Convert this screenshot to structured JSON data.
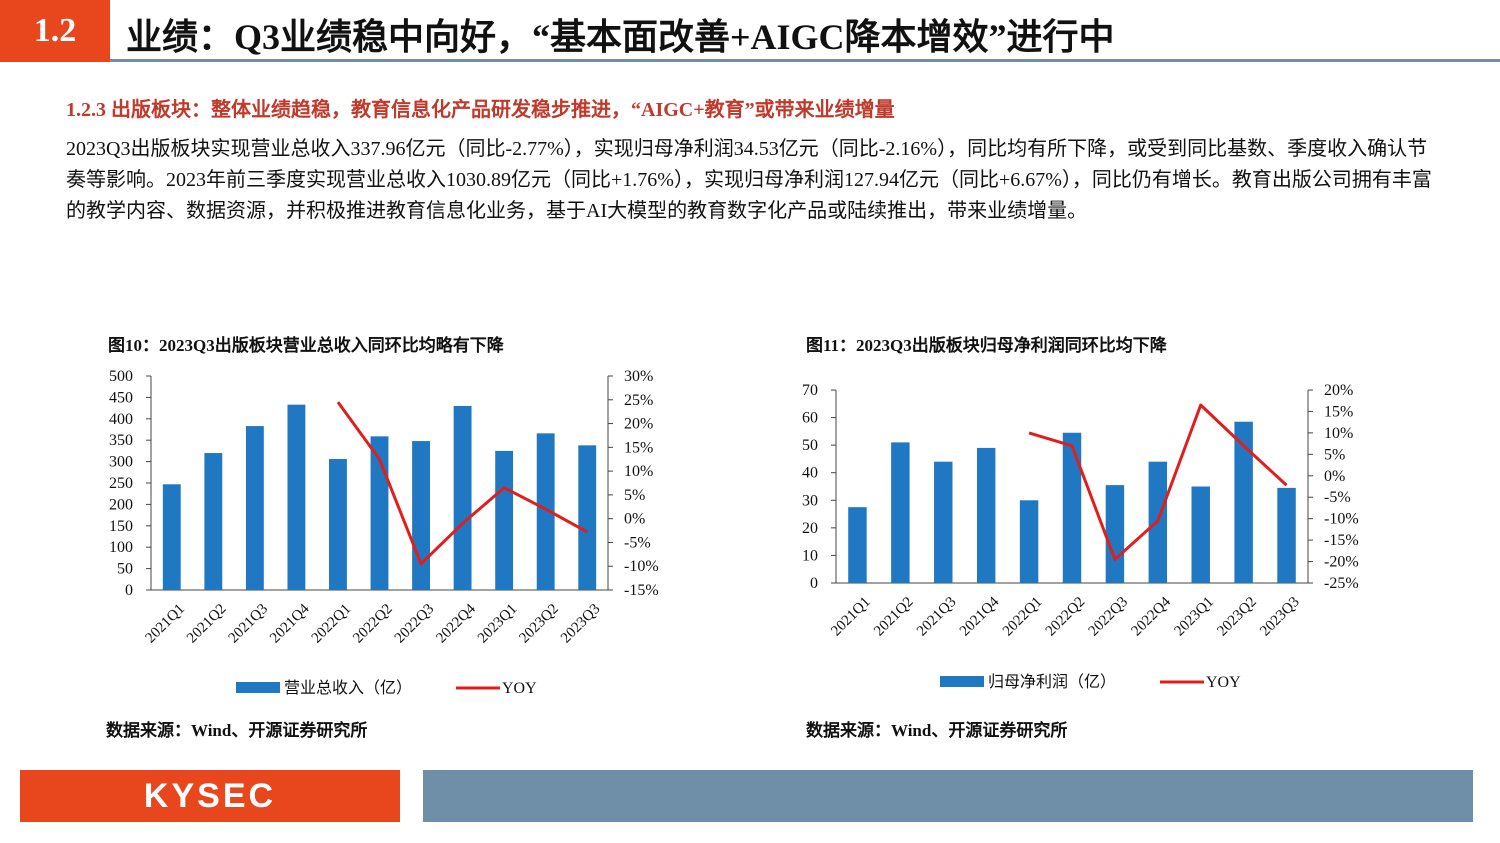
{
  "header": {
    "section_number": "1.2",
    "title": "业绩：Q3业绩稳中向好，“基本面改善+AIGC降本增效”进行中"
  },
  "subsection": {
    "title": "1.2.3 出版板块：整体业绩趋稳，教育信息化产品研发稳步推进，“AIGC+教育”或带来业绩增量"
  },
  "body": {
    "paragraph": "2023Q3出版板块实现营业总收入337.96亿元（同比-2.77%），实现归母净利润34.53亿元（同比-2.16%），同比均有所下降，或受到同比基数、季度收入确认节奏等影响。2023年前三季度实现营业总收入1030.89亿元（同比+1.76%），实现归母净利润127.94亿元（同比+6.67%），同比仍有增长。教育出版公司拥有丰富的教学内容、数据资源，并积极推进教育信息化业务，基于AI大模型的教育数字化产品或陆续推出，带来业绩增量。"
  },
  "figures": [
    {
      "title": "图10：2023Q3出版板块营业总收入同环比均略有下降",
      "source": "数据来源：Wind、开源证券研究所"
    },
    {
      "title": "图11：2023Q3出版板块归母净利润同环比均下降",
      "source": "数据来源：Wind、开源证券研究所"
    }
  ],
  "colors": {
    "accent": "#e8471e",
    "bar": "#1f78c1",
    "line": "#e01e1e",
    "rule": "#6f8ea8"
  },
  "chart_data": [
    {
      "type": "bar",
      "title": "图10：2023Q3出版板块营业总收入同环比均略有下降",
      "categories": [
        "2021Q1",
        "2021Q2",
        "2021Q3",
        "2021Q4",
        "2022Q1",
        "2022Q2",
        "2022Q3",
        "2022Q4",
        "2023Q1",
        "2023Q2",
        "2023Q3"
      ],
      "series": [
        {
          "name": "营业总收入（亿）",
          "type": "bar",
          "axis": "left",
          "values": [
            247,
            320,
            383,
            433,
            306,
            359,
            348,
            430,
            325,
            366,
            338
          ]
        },
        {
          "name": "YOY",
          "type": "line",
          "axis": "right",
          "values": [
            null,
            null,
            null,
            null,
            24.5,
            12.5,
            -9.5,
            -1,
            6.5,
            2,
            -2.8
          ]
        }
      ],
      "y_ticks": [
        "0",
        "50",
        "100",
        "150",
        "200",
        "250",
        "300",
        "350",
        "400",
        "450",
        "500"
      ],
      "y2_ticks": [
        "-15%",
        "-10%",
        "-5%",
        "0%",
        "5%",
        "10%",
        "15%",
        "20%",
        "25%",
        "30%"
      ],
      "ylim": [
        0,
        500
      ],
      "y2lim": [
        -15,
        30
      ],
      "legend_position": "bottom"
    },
    {
      "type": "bar",
      "title": "图11：2023Q3出版板块归母净利润同环比均下降",
      "categories": [
        "2021Q1",
        "2021Q2",
        "2021Q3",
        "2021Q4",
        "2022Q1",
        "2022Q2",
        "2022Q3",
        "2022Q4",
        "2023Q1",
        "2023Q2",
        "2023Q3"
      ],
      "series": [
        {
          "name": "归母净利润（亿）",
          "type": "bar",
          "axis": "left",
          "values": [
            27.5,
            51,
            44,
            49,
            30,
            54.5,
            35.5,
            44,
            35,
            58.5,
            34.5
          ]
        },
        {
          "name": "YOY",
          "type": "line",
          "axis": "right",
          "values": [
            null,
            null,
            null,
            null,
            10,
            7,
            -19.5,
            -10.5,
            16.5,
            7,
            -2.2
          ]
        }
      ],
      "y_ticks": [
        "0",
        "10",
        "20",
        "30",
        "40",
        "50",
        "60",
        "70"
      ],
      "y2_ticks": [
        "-25%",
        "-20%",
        "-15%",
        "-10%",
        "-5%",
        "0%",
        "5%",
        "10%",
        "15%",
        "20%"
      ],
      "ylim": [
        0,
        70
      ],
      "y2lim": [
        -25,
        20
      ],
      "legend_position": "bottom"
    }
  ],
  "footer": {
    "logo_text": "KYSEC"
  }
}
